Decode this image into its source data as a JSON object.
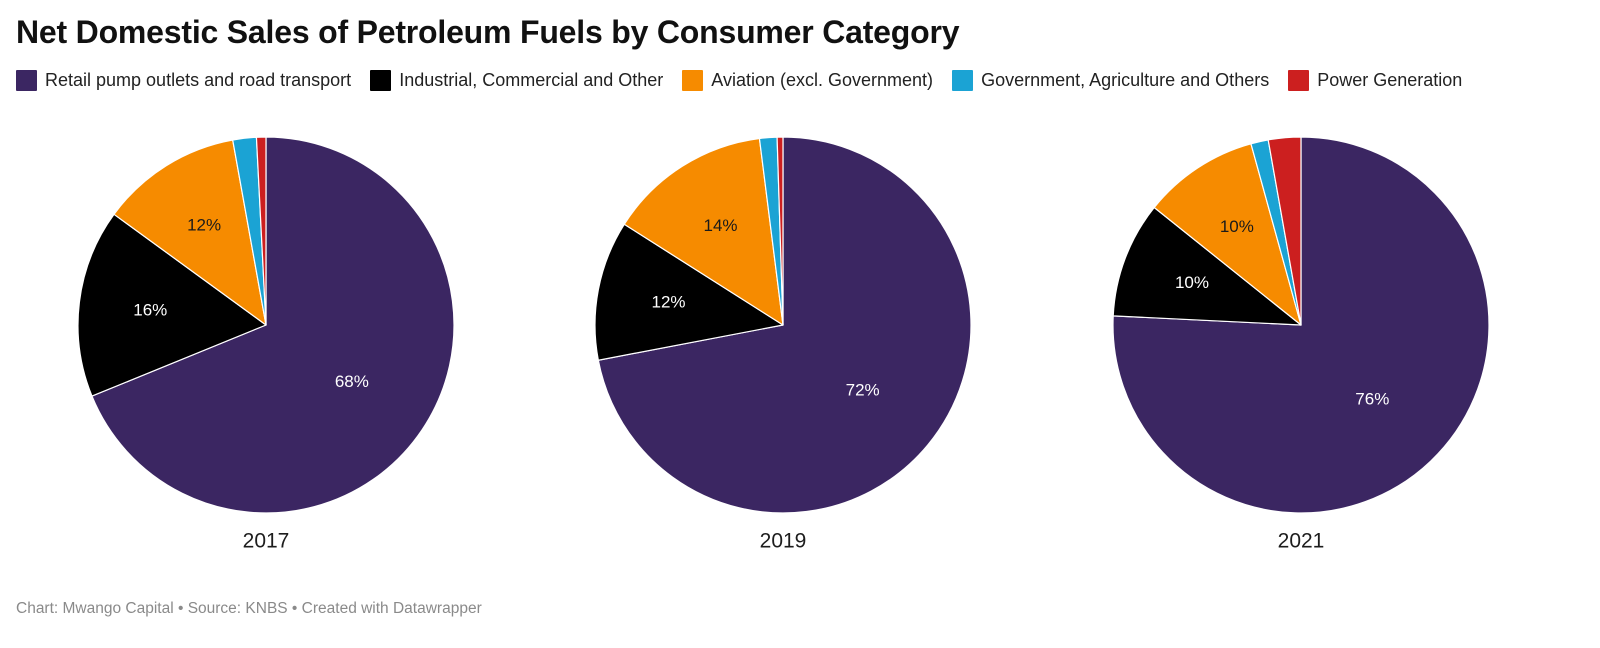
{
  "title": "Net Domestic Sales of Petroleum Fuels by Consumer Category",
  "legend": [
    {
      "label": "Retail pump outlets and road transport",
      "color": "#3b2662"
    },
    {
      "label": "Industrial, Commercial and Other",
      "color": "#000000"
    },
    {
      "label": "Aviation (excl. Government)",
      "color": "#f68b00"
    },
    {
      "label": "Government, Agriculture and Others",
      "color": "#1ba3d4"
    },
    {
      "label": "Power Generation",
      "color": "#cc1f1f"
    }
  ],
  "chart_data": [
    {
      "type": "pie",
      "xlabel": "2017",
      "labels": [
        "Retail pump outlets and road transport",
        "Industrial, Commercial and Other",
        "Aviation (excl. Government)",
        "Government, Agriculture and Others",
        "Power Generation"
      ],
      "values": [
        68,
        16,
        12,
        2,
        0.8
      ],
      "data_labels": [
        "68%",
        "16%",
        "12%",
        "",
        ""
      ]
    },
    {
      "type": "pie",
      "xlabel": "2019",
      "labels": [
        "Retail pump outlets and road transport",
        "Industrial, Commercial and Other",
        "Aviation (excl. Government)",
        "Government, Agriculture and Others",
        "Power Generation"
      ],
      "values": [
        72,
        12,
        14,
        1.5,
        0.5
      ],
      "data_labels": [
        "72%",
        "12%",
        "14%",
        "",
        ""
      ]
    },
    {
      "type": "pie",
      "xlabel": "2021",
      "labels": [
        "Retail pump outlets and road transport",
        "Industrial, Commercial and Other",
        "Aviation (excl. Government)",
        "Government, Agriculture and Others",
        "Power Generation"
      ],
      "values": [
        76,
        10,
        10,
        1.5,
        2.8
      ],
      "data_labels": [
        "76%",
        "10%",
        "10%",
        "",
        ""
      ]
    }
  ],
  "footer": "Chart: Mwango Capital • Source: KNBS • Created with Datawrapper"
}
